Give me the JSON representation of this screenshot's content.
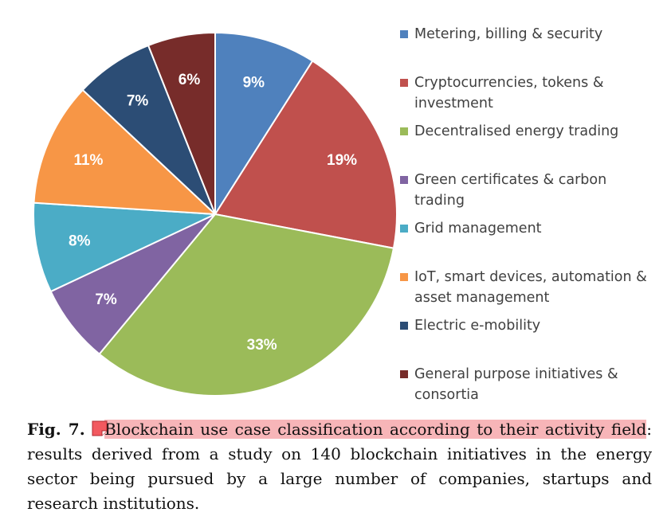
{
  "chart_data": {
    "type": "pie",
    "slices": [
      {
        "label": "Metering, billing & security",
        "value": 9,
        "display": "9%",
        "color": "#4f81bd"
      },
      {
        "label": "Cryptocurrencies, tokens & investment",
        "value": 19,
        "display": "19%",
        "color": "#c0504d"
      },
      {
        "label": "Decentralised energy trading",
        "value": 33,
        "display": "33%",
        "color": "#9bbb59"
      },
      {
        "label": "Green certificates & carbon trading",
        "value": 7,
        "display": "7%",
        "color": "#8064a2"
      },
      {
        "label": "Grid management",
        "value": 8,
        "display": "8%",
        "color": "#4bacc6"
      },
      {
        "label": "IoT, smart devices, automation & asset management",
        "value": 11,
        "display": "11%",
        "color": "#f79646"
      },
      {
        "label": "Electric e-mobility",
        "value": 7,
        "display": "7%",
        "color": "#2c4d75"
      },
      {
        "label": "General purpose initiatives & consortia",
        "value": 6,
        "display": "6%",
        "color": "#772c2a"
      }
    ],
    "legend_position": "right"
  },
  "legend": {
    "items": [
      {
        "line1": "Metering, billing & security",
        "line2": ""
      },
      {
        "line1": "Cryptocurrencies, tokens &",
        "line2": "investment"
      },
      {
        "line1": "Decentralised energy trading",
        "line2": ""
      },
      {
        "line1": "Green certificates & carbon",
        "line2": "trading"
      },
      {
        "line1": "Grid management",
        "line2": ""
      },
      {
        "line1": "IoT, smart devices, automation &",
        "line2": "asset management"
      },
      {
        "line1": "Electric e-mobility",
        "line2": ""
      },
      {
        "line1": "General purpose initiatives &",
        "line2": "consortia"
      }
    ]
  },
  "caption": {
    "label": "Fig. 7.",
    "highlighted": "Blockchain use case classification according to their activity field",
    "rest": ": results derived from a study on 140 blockchain initiatives in the energy sector being pursued by a large number of companies, startups and research institutions.",
    "note_icon": "comment-note-icon",
    "highlight_color": "#f7b5b8"
  }
}
